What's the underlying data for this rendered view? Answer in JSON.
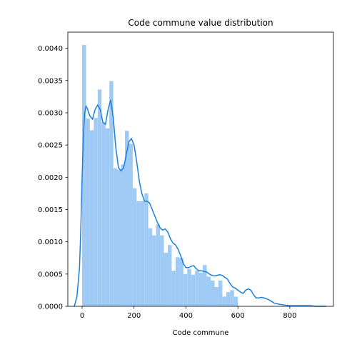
{
  "chart_data": {
    "type": "histogram",
    "title": "Code commune value distribution",
    "xlabel": "Code commune",
    "ylabel": "",
    "xlim": [
      -55,
      968
    ],
    "ylim": [
      0,
      0.00425
    ],
    "x_ticks": [
      0,
      200,
      400,
      600,
      800
    ],
    "x_tick_labels": [
      "0",
      "200",
      "400",
      "600",
      "800"
    ],
    "y_ticks": [
      0,
      0.0005,
      0.001,
      0.0015,
      0.002,
      0.0025,
      0.003,
      0.0035,
      0.004
    ],
    "y_tick_labels": [
      "0.0000",
      "0.0005",
      "0.0010",
      "0.0015",
      "0.0020",
      "0.0025",
      "0.0030",
      "0.0035",
      "0.0040"
    ],
    "grid": false,
    "bin_edges": [
      0,
      15,
      30,
      45,
      60,
      75,
      90,
      105,
      120,
      135,
      150,
      165,
      180,
      195,
      210,
      225,
      240,
      255,
      270,
      285,
      300,
      315,
      330,
      345,
      360,
      375,
      390,
      405,
      420,
      435,
      450,
      465,
      480,
      495,
      510,
      525,
      540,
      555,
      570,
      585,
      600,
      615,
      630,
      645,
      660,
      675,
      690
    ],
    "bins": [
      0.00405,
      0.00291,
      0.00273,
      0.00292,
      0.00336,
      0.00285,
      0.00276,
      0.00349,
      0.00214,
      0.00212,
      0.0022,
      0.00272,
      0.00252,
      0.00183,
      0.00163,
      0.00163,
      0.00175,
      0.00121,
      0.0011,
      0.00127,
      0.0011,
      0.00083,
      0.00095,
      0.00055,
      0.00076,
      0.00075,
      0.0005,
      0.00058,
      0.00049,
      0.00055,
      0.00052,
      0.00064,
      0.00046,
      0.0004,
      0.0003,
      0.0004,
      0.00015,
      0.00022,
      0.00025,
      0.00015,
      0.0,
      0.0,
      0.0,
      0.0,
      0.0,
      0.0
    ],
    "kde": {
      "x": [
        -30,
        -20,
        -10,
        -5,
        0,
        5,
        10,
        15,
        20,
        25,
        30,
        40,
        50,
        60,
        70,
        80,
        90,
        100,
        110,
        120,
        130,
        140,
        150,
        160,
        170,
        180,
        190,
        200,
        210,
        220,
        230,
        240,
        250,
        260,
        270,
        280,
        290,
        300,
        310,
        320,
        330,
        340,
        350,
        360,
        370,
        380,
        390,
        400,
        410,
        420,
        430,
        440,
        450,
        460,
        470,
        480,
        490,
        500,
        510,
        520,
        530,
        540,
        550,
        560,
        570,
        580,
        590,
        600,
        610,
        620,
        630,
        640,
        650,
        660,
        670,
        680,
        690,
        700,
        720,
        740,
        760,
        780,
        800,
        820,
        840,
        860,
        880,
        900,
        920,
        940
      ],
      "y": [
        0.0,
        0.00015,
        0.0006,
        0.0012,
        0.002,
        0.00265,
        0.003,
        0.0031,
        0.00307,
        0.003,
        0.00295,
        0.0029,
        0.00305,
        0.00312,
        0.00305,
        0.00285,
        0.00282,
        0.00305,
        0.0032,
        0.00292,
        0.00245,
        0.00215,
        0.0021,
        0.00215,
        0.00235,
        0.00255,
        0.0026,
        0.0025,
        0.00225,
        0.00195,
        0.00175,
        0.00163,
        0.00163,
        0.0016,
        0.0015,
        0.0014,
        0.0013,
        0.00122,
        0.00118,
        0.0012,
        0.00115,
        0.00105,
        0.00098,
        0.00095,
        0.00088,
        0.00078,
        0.00066,
        0.0006,
        0.0006,
        0.00062,
        0.00063,
        0.00058,
        0.00055,
        0.00055,
        0.00054,
        0.00053,
        0.0005,
        0.00048,
        0.00047,
        0.00048,
        0.00049,
        0.00048,
        0.00045,
        0.00042,
        0.00035,
        0.0003,
        0.00028,
        0.00025,
        0.00022,
        0.0002,
        0.00025,
        0.00027,
        0.00025,
        0.00018,
        0.00013,
        0.00013,
        0.00014,
        0.00013,
        0.0001,
        5e-05,
        3e-05,
        2e-05,
        1e-05,
        1e-05,
        1e-05,
        1e-05,
        1e-05,
        0.0,
        0.0,
        0.0
      ]
    },
    "colors": {
      "bar_fill": "#9ecaf5",
      "kde_line": "#1a7fe0",
      "axis": "#000000"
    }
  }
}
